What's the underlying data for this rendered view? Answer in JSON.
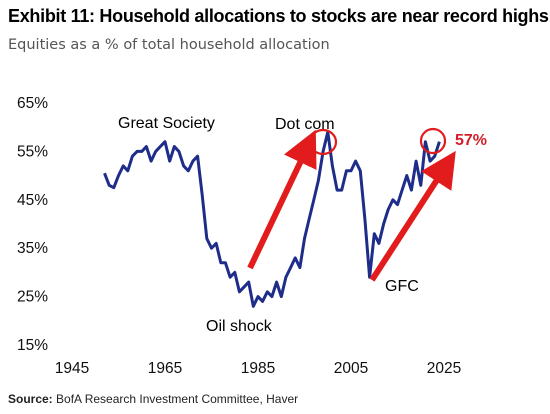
{
  "header": {
    "title": "Exhibit 11: Household allocations to stocks are near record highs",
    "subtitle": "Equities as a % of total household allocation"
  },
  "source": {
    "label": "Source:",
    "text": "BofA Research Investment Committee, Haver"
  },
  "colors": {
    "line": "#1f2d8a",
    "accent": "#e21c1c",
    "callout": "#d21f2a"
  },
  "chart_data": {
    "type": "line",
    "xlim": [
      1945,
      2025
    ],
    "ylim": [
      15,
      65
    ],
    "xticks": [
      "1945",
      "1965",
      "1985",
      "2005",
      "2025"
    ],
    "yticks": [
      "15%",
      "25%",
      "35%",
      "45%",
      "55%",
      "65%"
    ],
    "grid": false,
    "series": [
      {
        "x": [
          1952,
          1953,
          1954,
          1955,
          1956,
          1957,
          1958,
          1959,
          1960,
          1961,
          1962,
          1963,
          1964,
          1965,
          1966,
          1967,
          1968,
          1969,
          1970,
          1971,
          1972,
          1973,
          1974,
          1975,
          1976,
          1977,
          1978,
          1979,
          1980,
          1981,
          1982,
          1983,
          1984,
          1985,
          1986,
          1987,
          1988,
          1989,
          1990,
          1991,
          1992,
          1993,
          1994,
          1995,
          1996,
          1997,
          1998,
          1999,
          2000,
          2001,
          2002,
          2003,
          2004,
          2005,
          2006,
          2007,
          2008,
          2009,
          2010,
          2011,
          2012,
          2013,
          2014,
          2015,
          2016,
          2017,
          2018,
          2019,
          2020,
          2021,
          2022,
          2023,
          2024
        ],
        "y": [
          50.5,
          48,
          47.5,
          50,
          52,
          51,
          54,
          55,
          55,
          56,
          53,
          55,
          56,
          57,
          53,
          56,
          55,
          52,
          51,
          53,
          54,
          46,
          37,
          35,
          36,
          32,
          32,
          29,
          30,
          26,
          27,
          28,
          23,
          25,
          24,
          26,
          25,
          28,
          25,
          29,
          31,
          33,
          31,
          37,
          41,
          45,
          49,
          55,
          59,
          52,
          47,
          47,
          51,
          51,
          53,
          51,
          41,
          29,
          38,
          36,
          40,
          43,
          45,
          44,
          47,
          50,
          47,
          53,
          48,
          57,
          53,
          54,
          57
        ]
      }
    ],
    "annotations": [
      {
        "label": "Great Society",
        "x": 1964,
        "y": 60
      },
      {
        "label": "Dot com",
        "x": 2000,
        "y": 60
      },
      {
        "label": "Oil shock",
        "x": 1985,
        "y": 20
      },
      {
        "label": "GFC",
        "x": 2011,
        "y": 28
      },
      {
        "label": "57%",
        "x": 2024,
        "y": 57
      }
    ]
  }
}
